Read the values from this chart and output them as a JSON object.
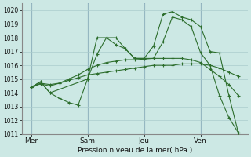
{
  "background_color": "#cce8e4",
  "grid_color": "#aacccc",
  "line_color_dark": "#2d6e2d",
  "xlabel": "Pression niveau de la mer( hPa )",
  "ylim": [
    1011,
    1020.5
  ],
  "yticks": [
    1011,
    1012,
    1013,
    1014,
    1015,
    1016,
    1017,
    1018,
    1019,
    1020
  ],
  "day_labels": [
    "Mer",
    "Sam",
    "Jeu",
    "Ven"
  ],
  "day_positions": [
    1,
    4,
    7,
    10
  ],
  "xlim": [
    0.5,
    12.5
  ],
  "series1_x": [
    1.0,
    1.5,
    2.0,
    2.5,
    3.0,
    3.5,
    4.0,
    4.5,
    5.0,
    5.5,
    6.0,
    6.5,
    7.0,
    7.5,
    8.0,
    8.5,
    9.0,
    9.5,
    10.0,
    10.5,
    11.0,
    11.5,
    12.0
  ],
  "series1_y": [
    1014.4,
    1014.7,
    1014.6,
    1014.7,
    1014.9,
    1015.1,
    1015.3,
    1015.4,
    1015.5,
    1015.6,
    1015.7,
    1015.8,
    1015.9,
    1016.0,
    1016.0,
    1016.0,
    1016.1,
    1016.1,
    1016.1,
    1016.0,
    1015.8,
    1015.5,
    1015.2
  ],
  "series2_x": [
    1.0,
    1.5,
    2.0,
    2.5,
    3.0,
    3.5,
    4.0,
    4.5,
    5.0,
    5.5,
    6.0,
    6.5,
    7.0,
    7.5,
    8.0,
    8.5,
    9.0,
    9.5,
    10.0,
    10.5,
    11.0,
    11.5,
    12.0
  ],
  "series2_y": [
    1014.4,
    1014.65,
    1014.5,
    1014.7,
    1015.0,
    1015.3,
    1015.7,
    1016.0,
    1016.2,
    1016.3,
    1016.4,
    1016.4,
    1016.45,
    1016.5,
    1016.5,
    1016.5,
    1016.5,
    1016.4,
    1016.2,
    1015.7,
    1015.2,
    1014.6,
    1013.8
  ],
  "series3_x": [
    1.0,
    1.5,
    2.0,
    4.0,
    4.5,
    5.0,
    5.5,
    6.0,
    6.5,
    7.0,
    7.5,
    8.0,
    8.5,
    9.0,
    9.5,
    10.0,
    10.5,
    11.0,
    11.5,
    12.0
  ],
  "series3_y": [
    1014.4,
    1014.8,
    1014.0,
    1015.0,
    1018.0,
    1018.0,
    1017.5,
    1017.2,
    1016.5,
    1016.5,
    1016.5,
    1017.7,
    1019.5,
    1019.3,
    1018.8,
    1016.9,
    1016.0,
    1013.8,
    1012.2,
    1011.1
  ],
  "series4_x": [
    1.0,
    1.5,
    2.0,
    2.5,
    3.0,
    3.5,
    4.0,
    4.5,
    5.0,
    5.5,
    6.0,
    6.5,
    7.0,
    7.5,
    8.0,
    8.5,
    9.0,
    9.5,
    10.0,
    10.5,
    11.0,
    11.5,
    12.0
  ],
  "series4_y": [
    1014.4,
    1014.8,
    1014.0,
    1013.6,
    1013.3,
    1013.1,
    1015.0,
    1016.8,
    1018.0,
    1018.0,
    1017.2,
    1016.5,
    1016.5,
    1017.4,
    1019.7,
    1019.9,
    1019.5,
    1019.3,
    1018.8,
    1017.0,
    1016.9,
    1013.8,
    1011.1
  ]
}
